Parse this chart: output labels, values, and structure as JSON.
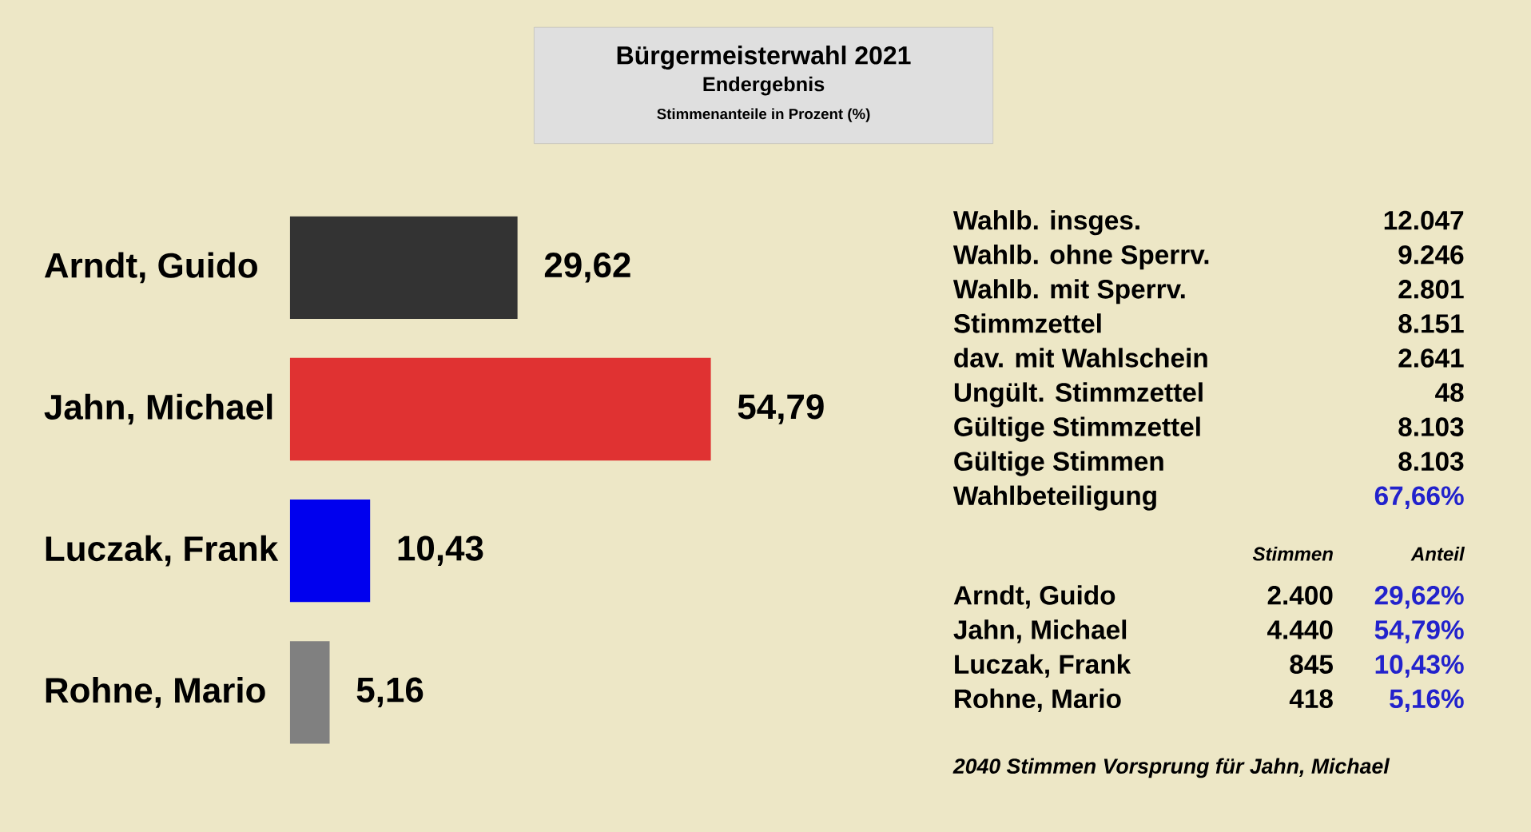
{
  "chart_data": [
    {
      "type": "bar",
      "orientation": "horizontal",
      "title": "Bürgermeisterwahl 2021",
      "subtitle": "Endergebnis",
      "annotations": [
        "Stimmenanteile in Prozent (%)"
      ],
      "categories": [
        "Arndt, Guido",
        "Jahn, Michael",
        "Luczak, Frank",
        "Rohne, Mario"
      ],
      "values": [
        29.62,
        54.79,
        10.43,
        5.16
      ],
      "colors": [
        "#333333",
        "#e03232",
        "#0000ee",
        "#808080"
      ],
      "value_labels": [
        "29,62",
        "54,79",
        "10,43",
        "5,16"
      ]
    },
    {
      "type": "other",
      "annotations": [
        "Wahlb. insges.",
        "12.047",
        "Wahlb. ohne Sperrv.",
        "9.246",
        "Wahlb. mit Sperrv.",
        "2.801",
        "Stimmzettel",
        "8.151",
        "dav. mit Wahlschein",
        "2.641",
        "Ungült. Stimmzettel",
        "48",
        "Gültige Stimmzettel",
        "8.103",
        "Gültige Stimmen",
        "8.103",
        "Wahlbeteiligung",
        "67,66%",
        "Stimmen",
        "Anteil",
        "Arndt, Guido",
        "2.400",
        "29,62%",
        "Jahn, Michael",
        "4.440",
        "54,79%",
        "Luczak, Frank",
        "845",
        "10,43%",
        "Rohne, Mario",
        "418",
        "5,16%",
        "2040 Stimmen Vorsprung für Jahn, Michael"
      ]
    }
  ]
}
